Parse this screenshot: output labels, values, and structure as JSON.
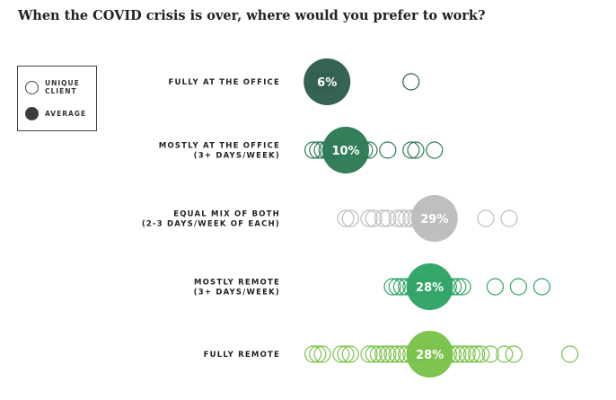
{
  "title": "When the COVID crisis is over, where would you prefer to work?",
  "legend": {
    "unique_client": "UNIQUE CLIENT",
    "average": "AVERAGE",
    "position": "top-left"
  },
  "chart_data": {
    "type": "scatter",
    "title": "When the COVID crisis is over, where would you prefer to work?",
    "xlabel": "",
    "ylabel": "",
    "grid": false,
    "x_unit": "percent",
    "xlim": [
      0,
      75
    ],
    "categories": [
      {
        "label_lines": [
          "FULLY AT THE OFFICE"
        ],
        "color": "#2e5e4e",
        "average": 6,
        "average_label": "6%",
        "clients": [
          3,
          4,
          5,
          6,
          7,
          24
        ]
      },
      {
        "label_lines": [
          "MOSTLY AT THE OFFICE",
          "(3+ DAYS/WEEK)"
        ],
        "color": "#2d7a55",
        "average": 10,
        "average_label": "10%",
        "clients": [
          3,
          4,
          5,
          6,
          7,
          8,
          9,
          14,
          15,
          19,
          24,
          25,
          29
        ]
      },
      {
        "label_lines": [
          "EQUAL MIX OF BOTH",
          "(2-3 DAYS/WEEK OF EACH)"
        ],
        "color": "#bdbdbd",
        "average": 29,
        "average_label": "29%",
        "clients": [
          10,
          11,
          15,
          16,
          18,
          19,
          21,
          22,
          23,
          24,
          25,
          26,
          27,
          28,
          30,
          31,
          40,
          45
        ]
      },
      {
        "label_lines": [
          "MOSTLY REMOTE",
          "(3+ DAYS/WEEK)"
        ],
        "color": "#2fa465",
        "average": 28,
        "average_label": "28%",
        "clients": [
          20,
          21,
          22,
          23,
          24,
          25,
          26,
          27,
          30,
          32,
          33,
          34,
          35,
          42,
          47,
          52
        ]
      },
      {
        "label_lines": [
          "FULLY REMOTE"
        ],
        "color": "#79c24a",
        "average": 28,
        "average_label": "28%",
        "clients": [
          3,
          4,
          5,
          9,
          10,
          11,
          15,
          16,
          17,
          18,
          19,
          20,
          21,
          22,
          23,
          24,
          25,
          26,
          27,
          32,
          33,
          34,
          35,
          36,
          37,
          38,
          39,
          41,
          44,
          46,
          58
        ]
      }
    ]
  }
}
